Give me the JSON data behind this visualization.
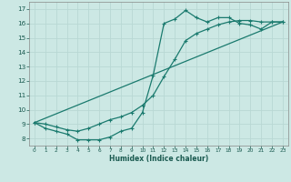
{
  "title": "",
  "xlabel": "Humidex (Indice chaleur)",
  "ylabel": "",
  "bg_color": "#cce8e4",
  "grid_color": "#b8d8d4",
  "line_color": "#1a7a6e",
  "xlim": [
    -0.5,
    23.5
  ],
  "ylim": [
    7.5,
    17.5
  ],
  "xticks": [
    0,
    1,
    2,
    3,
    4,
    5,
    6,
    7,
    8,
    9,
    10,
    11,
    12,
    13,
    14,
    15,
    16,
    17,
    18,
    19,
    20,
    21,
    22,
    23
  ],
  "yticks": [
    8,
    9,
    10,
    11,
    12,
    13,
    14,
    15,
    16,
    17
  ],
  "line1_x": [
    0,
    1,
    2,
    3,
    4,
    5,
    6,
    7,
    8,
    9,
    10,
    11,
    12,
    13,
    14,
    15,
    16,
    17,
    18,
    19,
    20,
    21,
    22,
    23
  ],
  "line1_y": [
    9.1,
    8.7,
    8.5,
    8.3,
    7.9,
    7.9,
    7.9,
    8.1,
    8.5,
    8.7,
    9.8,
    12.4,
    16.0,
    16.3,
    16.9,
    16.4,
    16.1,
    16.4,
    16.4,
    16.0,
    15.9,
    15.6,
    16.1,
    16.1
  ],
  "line2_x": [
    0,
    1,
    2,
    3,
    4,
    5,
    6,
    7,
    8,
    9,
    10,
    11,
    12,
    13,
    14,
    15,
    16,
    17,
    18,
    19,
    20,
    21,
    22,
    23
  ],
  "line2_y": [
    9.1,
    9.0,
    8.8,
    8.6,
    8.5,
    8.7,
    9.0,
    9.3,
    9.5,
    9.8,
    10.3,
    11.0,
    12.3,
    13.5,
    14.8,
    15.3,
    15.6,
    15.9,
    16.1,
    16.2,
    16.2,
    16.1,
    16.1,
    16.1
  ],
  "line3_x": [
    0,
    23
  ],
  "line3_y": [
    9.1,
    16.1
  ]
}
